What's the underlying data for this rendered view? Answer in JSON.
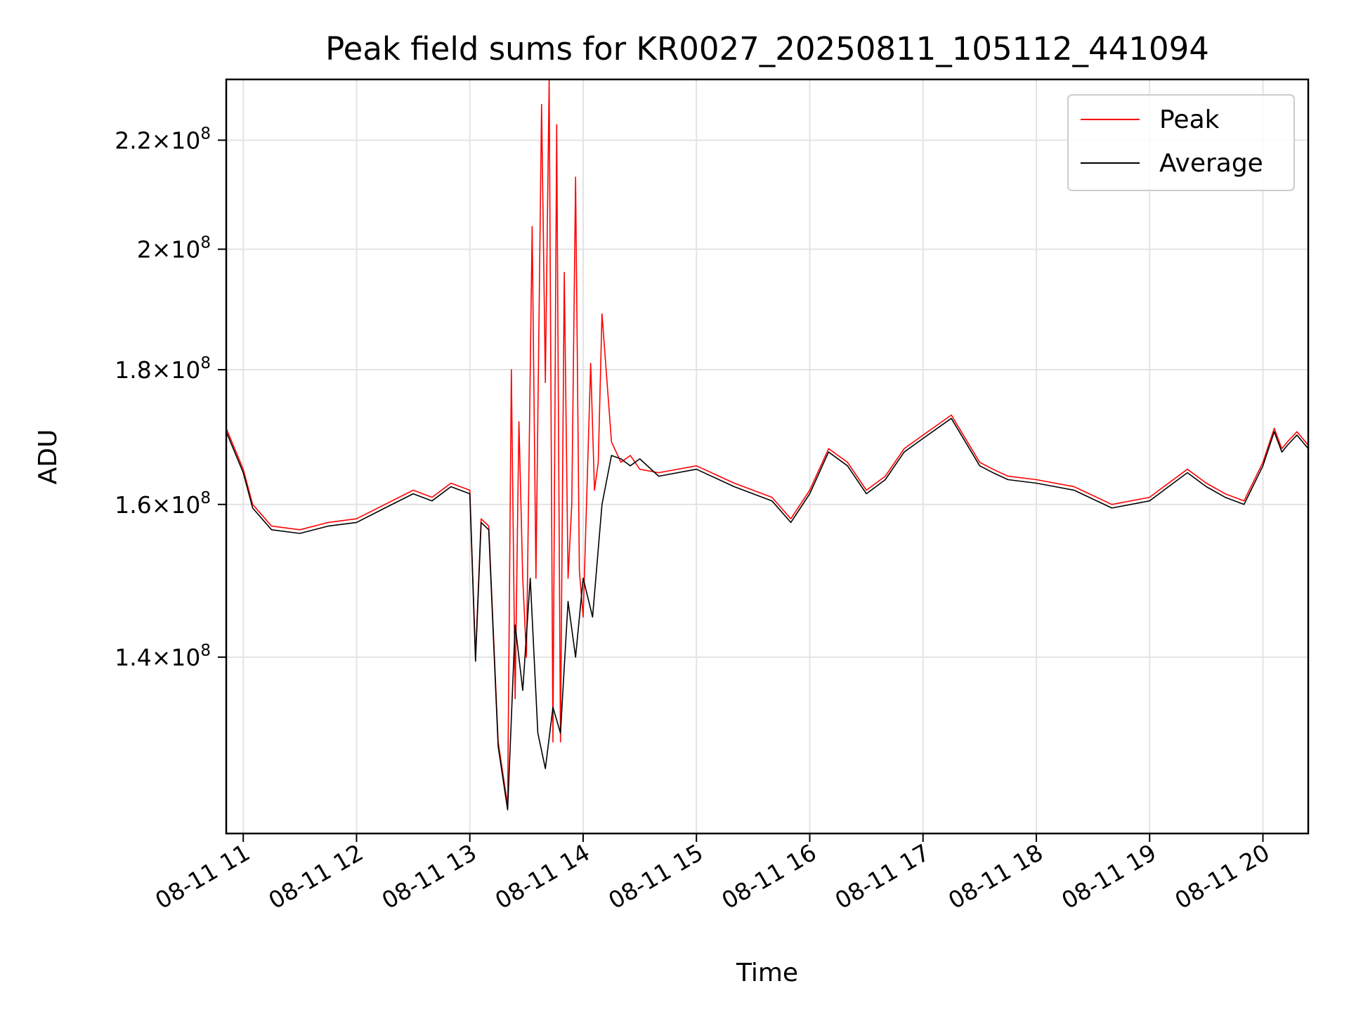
{
  "chart_data": {
    "type": "line",
    "title": "Peak field sums for KR0027_20250811_105112_441094",
    "xlabel": "Time",
    "ylabel": "ADU",
    "y_scale": "log",
    "grid": true,
    "legend_position": "top-right",
    "xlim": [
      "2025-08-11T10:51",
      "2025-08-11T20:24"
    ],
    "ylim": [
      120000000,
      232000000
    ],
    "x_ticks": [
      {
        "value": "2025-08-11T11:00",
        "label": "08-11 11"
      },
      {
        "value": "2025-08-11T12:00",
        "label": "08-11 12"
      },
      {
        "value": "2025-08-11T13:00",
        "label": "08-11 13"
      },
      {
        "value": "2025-08-11T14:00",
        "label": "08-11 14"
      },
      {
        "value": "2025-08-11T15:00",
        "label": "08-11 15"
      },
      {
        "value": "2025-08-11T16:00",
        "label": "08-11 16"
      },
      {
        "value": "2025-08-11T17:00",
        "label": "08-11 17"
      },
      {
        "value": "2025-08-11T18:00",
        "label": "08-11 18"
      },
      {
        "value": "2025-08-11T19:00",
        "label": "08-11 19"
      },
      {
        "value": "2025-08-11T20:00",
        "label": "08-11 20"
      }
    ],
    "y_ticks": [
      {
        "value": 140000000,
        "mant": "1.4",
        "exp": "8"
      },
      {
        "value": 160000000,
        "mant": "1.6",
        "exp": "8"
      },
      {
        "value": 180000000,
        "mant": "1.8",
        "exp": "8"
      },
      {
        "value": 200000000,
        "mant": "2",
        "exp": "8"
      },
      {
        "value": 220000000,
        "mant": "2.2",
        "exp": "8"
      }
    ],
    "series": [
      {
        "name": "Peak",
        "color": "#ff0000",
        "x": [
          "2025-08-11T10:51",
          "2025-08-11T11:00",
          "2025-08-11T11:05",
          "2025-08-11T11:15",
          "2025-08-11T11:30",
          "2025-08-11T11:45",
          "2025-08-11T12:00",
          "2025-08-11T12:15",
          "2025-08-11T12:30",
          "2025-08-11T12:40",
          "2025-08-11T12:50",
          "2025-08-11T13:00",
          "2025-08-11T13:03",
          "2025-08-11T13:06",
          "2025-08-11T13:10",
          "2025-08-11T13:15",
          "2025-08-11T13:20",
          "2025-08-11T13:22",
          "2025-08-11T13:24",
          "2025-08-11T13:26",
          "2025-08-11T13:28",
          "2025-08-11T13:30",
          "2025-08-11T13:33",
          "2025-08-11T13:35",
          "2025-08-11T13:38",
          "2025-08-11T13:40",
          "2025-08-11T13:42",
          "2025-08-11T13:44",
          "2025-08-11T13:46",
          "2025-08-11T13:48",
          "2025-08-11T13:50",
          "2025-08-11T13:52",
          "2025-08-11T13:54",
          "2025-08-11T13:56",
          "2025-08-11T13:58",
          "2025-08-11T14:00",
          "2025-08-11T14:04",
          "2025-08-11T14:06",
          "2025-08-11T14:08",
          "2025-08-11T14:10",
          "2025-08-11T14:15",
          "2025-08-11T14:20",
          "2025-08-11T14:25",
          "2025-08-11T14:30",
          "2025-08-11T14:40",
          "2025-08-11T15:00",
          "2025-08-11T15:20",
          "2025-08-11T15:40",
          "2025-08-11T15:50",
          "2025-08-11T16:00",
          "2025-08-11T16:10",
          "2025-08-11T16:20",
          "2025-08-11T16:30",
          "2025-08-11T16:40",
          "2025-08-11T16:50",
          "2025-08-11T17:00",
          "2025-08-11T17:15",
          "2025-08-11T17:30",
          "2025-08-11T17:37",
          "2025-08-11T17:45",
          "2025-08-11T18:00",
          "2025-08-11T18:20",
          "2025-08-11T18:40",
          "2025-08-11T19:00",
          "2025-08-11T19:10",
          "2025-08-11T19:20",
          "2025-08-11T19:30",
          "2025-08-11T19:40",
          "2025-08-11T19:50",
          "2025-08-11T20:00",
          "2025-08-11T20:06",
          "2025-08-11T20:10",
          "2025-08-11T20:13",
          "2025-08-11T20:18",
          "2025-08-11T20:24"
        ],
        "y": [
          171000000,
          165000000,
          160000000,
          157000000,
          156500000,
          157500000,
          158000000,
          160000000,
          162000000,
          161000000,
          163000000,
          162000000,
          140000000,
          158000000,
          157000000,
          130000000,
          123000000,
          180000000,
          135000000,
          172000000,
          150000000,
          140000000,
          204000000,
          150000000,
          227000000,
          178000000,
          232000000,
          130000000,
          223000000,
          130000000,
          196000000,
          150000000,
          160000000,
          213000000,
          151000000,
          145000000,
          181000000,
          162000000,
          166000000,
          189000000,
          169000000,
          166000000,
          167000000,
          165000000,
          164500000,
          165500000,
          163000000,
          161000000,
          158000000,
          162000000,
          168000000,
          166000000,
          162000000,
          164000000,
          168000000,
          170000000,
          173000000,
          166000000,
          165000000,
          164000000,
          163500000,
          162500000,
          160000000,
          161000000,
          163000000,
          165000000,
          163000000,
          161500000,
          160500000,
          166000000,
          171000000,
          168000000,
          169000000,
          170500000,
          168500000
        ]
      },
      {
        "name": "Average",
        "color": "#000000",
        "x": [
          "2025-08-11T10:51",
          "2025-08-11T11:00",
          "2025-08-11T11:05",
          "2025-08-11T11:15",
          "2025-08-11T11:30",
          "2025-08-11T11:45",
          "2025-08-11T12:00",
          "2025-08-11T12:15",
          "2025-08-11T12:30",
          "2025-08-11T12:40",
          "2025-08-11T12:50",
          "2025-08-11T13:00",
          "2025-08-11T13:03",
          "2025-08-11T13:06",
          "2025-08-11T13:10",
          "2025-08-11T13:15",
          "2025-08-11T13:20",
          "2025-08-11T13:24",
          "2025-08-11T13:28",
          "2025-08-11T13:32",
          "2025-08-11T13:36",
          "2025-08-11T13:40",
          "2025-08-11T13:44",
          "2025-08-11T13:48",
          "2025-08-11T13:52",
          "2025-08-11T13:56",
          "2025-08-11T14:00",
          "2025-08-11T14:05",
          "2025-08-11T14:10",
          "2025-08-11T14:15",
          "2025-08-11T14:20",
          "2025-08-11T14:25",
          "2025-08-11T14:30",
          "2025-08-11T14:40",
          "2025-08-11T15:00",
          "2025-08-11T15:20",
          "2025-08-11T15:40",
          "2025-08-11T15:50",
          "2025-08-11T16:00",
          "2025-08-11T16:10",
          "2025-08-11T16:20",
          "2025-08-11T16:30",
          "2025-08-11T16:40",
          "2025-08-11T16:50",
          "2025-08-11T17:00",
          "2025-08-11T17:15",
          "2025-08-11T17:30",
          "2025-08-11T17:37",
          "2025-08-11T17:45",
          "2025-08-11T18:00",
          "2025-08-11T18:20",
          "2025-08-11T18:40",
          "2025-08-11T19:00",
          "2025-08-11T19:10",
          "2025-08-11T19:20",
          "2025-08-11T19:30",
          "2025-08-11T19:40",
          "2025-08-11T19:50",
          "2025-08-11T20:00",
          "2025-08-11T20:06",
          "2025-08-11T20:10",
          "2025-08-11T20:13",
          "2025-08-11T20:18",
          "2025-08-11T20:24"
        ],
        "y": [
          170500000,
          164500000,
          159500000,
          156500000,
          156000000,
          157000000,
          157500000,
          159500000,
          161500000,
          160500000,
          162500000,
          161500000,
          139500000,
          157500000,
          156500000,
          129500000,
          122500000,
          144000000,
          136000000,
          150000000,
          131000000,
          127000000,
          134000000,
          131000000,
          147000000,
          140000000,
          150000000,
          145000000,
          160000000,
          167000000,
          166500000,
          165500000,
          166500000,
          164000000,
          165000000,
          162500000,
          160500000,
          157500000,
          161500000,
          167500000,
          165500000,
          161500000,
          163500000,
          167500000,
          169500000,
          172500000,
          165500000,
          164500000,
          163500000,
          163000000,
          162000000,
          159500000,
          160500000,
          162500000,
          164500000,
          162500000,
          161000000,
          160000000,
          165500000,
          170500000,
          167500000,
          168500000,
          170000000,
          168000000
        ]
      }
    ]
  }
}
